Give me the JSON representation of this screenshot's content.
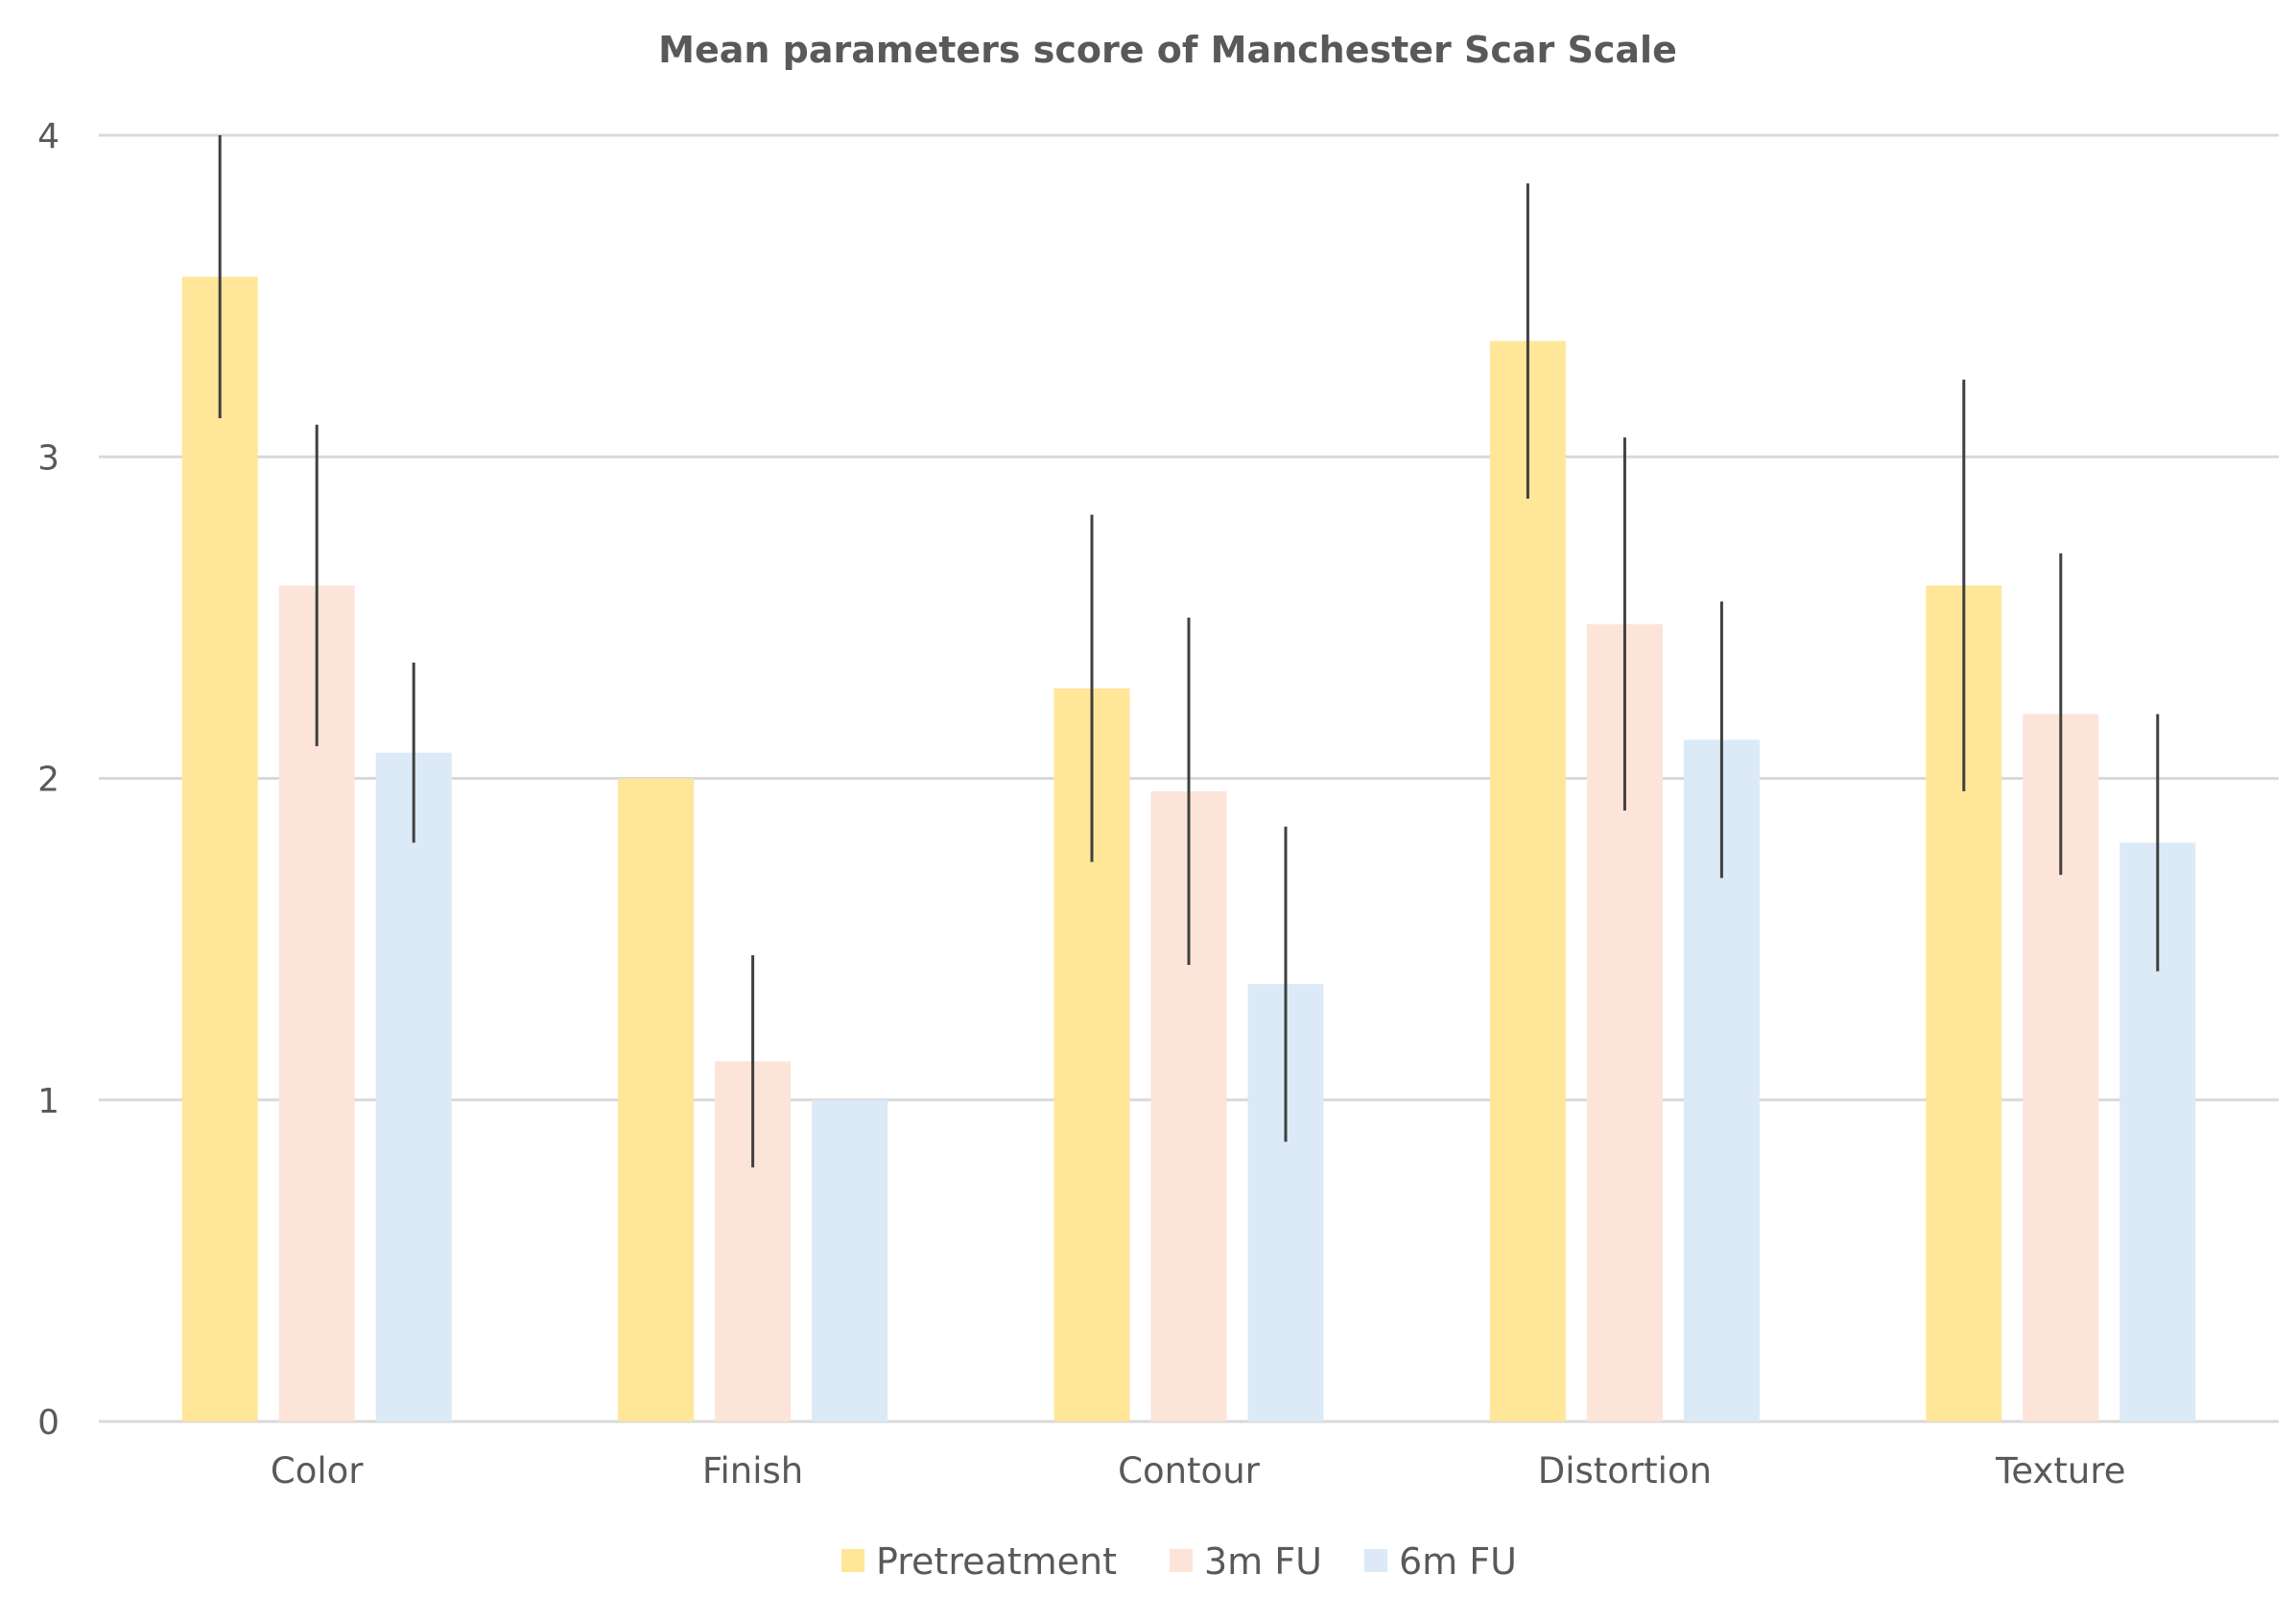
{
  "chart_data": {
    "type": "bar",
    "title": "Mean parameters score of Manchester Scar Scale",
    "xlabel": "",
    "ylabel": "",
    "ylim": [
      0,
      4
    ],
    "yticks": [
      0,
      1,
      2,
      3,
      4
    ],
    "grid": true,
    "legend_position": "bottom-center",
    "categories": [
      "Color",
      "Finish",
      "Contour",
      "Distortion",
      "Texture"
    ],
    "series": [
      {
        "name": "Pretreatment",
        "color": "#ffe699",
        "values": [
          3.56,
          2.0,
          2.28,
          3.36,
          2.6
        ],
        "errors": [
          0.44,
          null,
          0.54,
          0.49,
          0.64
        ]
      },
      {
        "name": "3m FU",
        "color": "#fde4d8",
        "values": [
          2.6,
          1.12,
          1.96,
          2.48,
          2.2
        ],
        "errors": [
          0.5,
          0.33,
          0.54,
          0.58,
          0.5
        ]
      },
      {
        "name": "6m FU",
        "color": "#dbeaf6",
        "values": [
          2.08,
          1.0,
          1.36,
          2.12,
          1.8
        ],
        "errors": [
          0.28,
          null,
          0.49,
          0.43,
          0.4
        ]
      }
    ]
  }
}
